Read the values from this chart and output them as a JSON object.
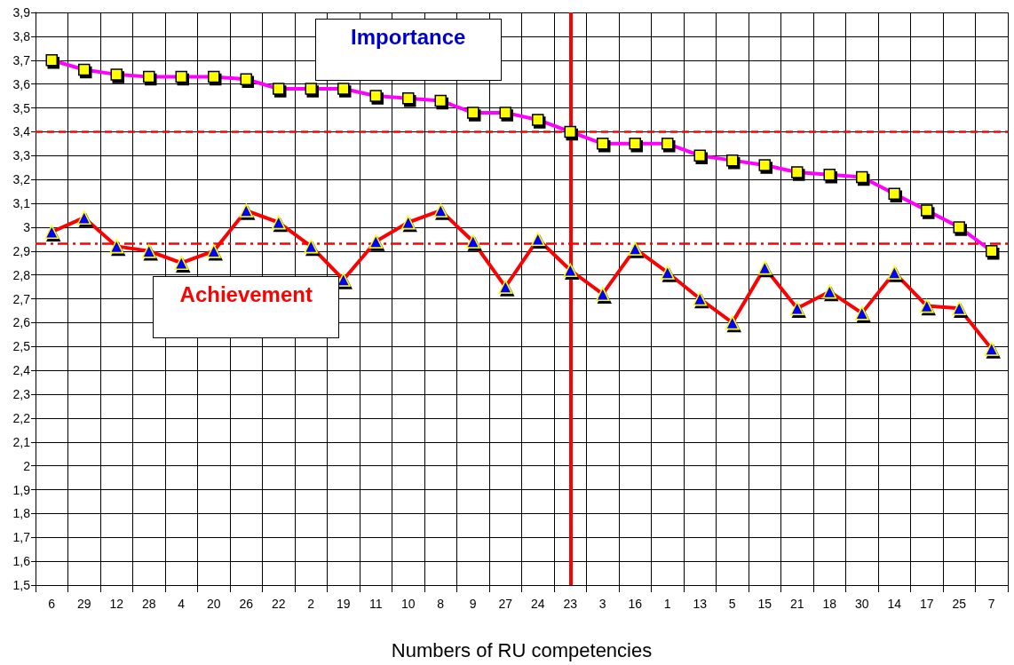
{
  "chart_data": {
    "type": "line",
    "xlabel": "Numbers of RU competencies",
    "categories": [
      "6",
      "29",
      "12",
      "28",
      "4",
      "20",
      "26",
      "22",
      "2",
      "19",
      "11",
      "10",
      "8",
      "9",
      "27",
      "24",
      "23",
      "3",
      "16",
      "1",
      "13",
      "5",
      "15",
      "21",
      "18",
      "30",
      "14",
      "17",
      "25",
      "7"
    ],
    "series": [
      {
        "name": "Importance",
        "color": "#ff00ff",
        "marker": "square",
        "values": [
          3.7,
          3.66,
          3.64,
          3.63,
          3.63,
          3.63,
          3.62,
          3.58,
          3.58,
          3.58,
          3.55,
          3.54,
          3.53,
          3.48,
          3.48,
          3.45,
          3.4,
          3.35,
          3.35,
          3.35,
          3.3,
          3.28,
          3.26,
          3.23,
          3.22,
          3.21,
          3.14,
          3.07,
          3.0,
          2.9
        ]
      },
      {
        "name": "Achievement",
        "color": "#ff0000",
        "marker": "triangle",
        "values": [
          2.98,
          3.04,
          2.92,
          2.9,
          2.85,
          2.9,
          3.07,
          3.02,
          2.92,
          2.78,
          2.94,
          3.02,
          3.07,
          2.94,
          2.75,
          2.95,
          2.82,
          2.72,
          2.91,
          2.81,
          2.7,
          2.6,
          2.83,
          2.66,
          2.73,
          2.64,
          2.81,
          2.67,
          2.66,
          2.49
        ]
      }
    ],
    "ylim": [
      1.5,
      3.9
    ],
    "yticks": [
      {
        "value": 1.5,
        "label": "1,5"
      },
      {
        "value": 1.6,
        "label": "1,6"
      },
      {
        "value": 1.7,
        "label": "1,7"
      },
      {
        "value": 1.8,
        "label": "1,8"
      },
      {
        "value": 1.9,
        "label": "1,9"
      },
      2,
      {
        "value": 2.1,
        "label": "2,1"
      },
      {
        "value": 2.2,
        "label": "2,2"
      },
      {
        "value": 2.3,
        "label": "2,3"
      },
      {
        "value": 2.4,
        "label": "2,4"
      },
      {
        "value": 2.5,
        "label": "2,5"
      },
      {
        "value": 2.6,
        "label": "2,6"
      },
      {
        "value": 2.7,
        "label": "2,7"
      },
      {
        "value": 2.8,
        "label": "2,8"
      },
      {
        "value": 2.9,
        "label": "2,9"
      },
      3,
      {
        "value": 3.1,
        "label": "3,1"
      },
      {
        "value": 3.2,
        "label": "3,2"
      },
      {
        "value": 3.3,
        "label": "3,3"
      },
      {
        "value": 3.4,
        "label": "3,4"
      },
      {
        "value": 3.5,
        "label": "3,5"
      },
      {
        "value": 3.6,
        "label": "3,6"
      },
      {
        "value": 3.7,
        "label": "3,7"
      },
      {
        "value": 3.8,
        "label": "3,8"
      },
      {
        "value": 3.9,
        "label": "3,9"
      }
    ],
    "ref_lines": [
      {
        "axis": "y",
        "value": 3.4,
        "color": "#ff0000",
        "line_style": "dashed"
      },
      {
        "axis": "y",
        "value": 2.93,
        "color": "#ff0000",
        "line_style": "dashdot"
      },
      {
        "axis": "x",
        "value": "23",
        "color": "#ff0000",
        "line_style": "solid"
      }
    ],
    "grid": true,
    "legend": false
  }
}
